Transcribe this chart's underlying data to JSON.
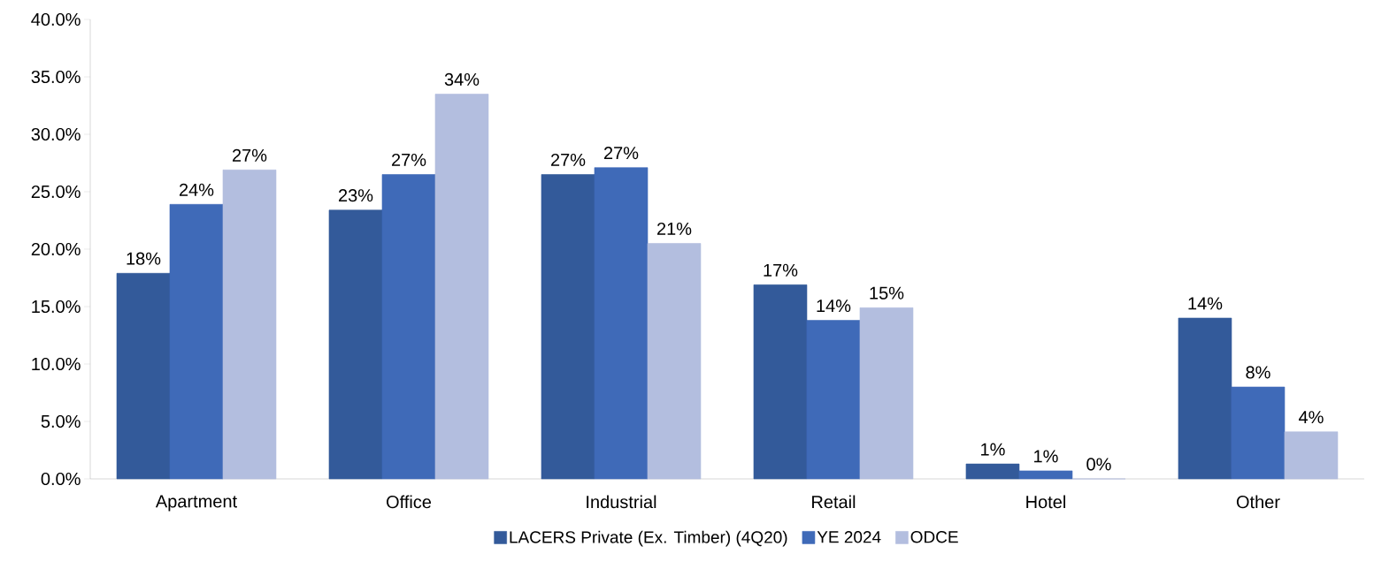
{
  "chart_data": {
    "type": "bar",
    "categories": [
      "Apartment",
      "Office",
      "Industrial",
      "Retail",
      "Hotel",
      "Other"
    ],
    "series": [
      {
        "name": "LACERS Private (Ex. Timber) (4Q20)",
        "color": "#335a9a",
        "values": [
          17.9,
          23.4,
          26.5,
          16.9,
          1.3,
          14.0
        ],
        "value_labels": [
          "18%",
          "23%",
          "27%",
          "17%",
          "1%",
          "14%"
        ]
      },
      {
        "name": "YE 2024",
        "color": "#3f6ab8",
        "values": [
          23.9,
          26.5,
          27.1,
          13.8,
          0.7,
          8.0
        ],
        "value_labels": [
          "24%",
          "27%",
          "27%",
          "14%",
          "1%",
          "8%"
        ]
      },
      {
        "name": "ODCE",
        "color": "#b3bedf",
        "values": [
          26.9,
          33.5,
          20.5,
          14.9,
          0.0,
          4.1
        ],
        "value_labels": [
          "27%",
          "34%",
          "21%",
          "15%",
          "0%",
          "4%"
        ]
      }
    ],
    "ylim": [
      0,
      40
    ],
    "yticks": [
      {
        "value": 0,
        "label": "0.0%"
      },
      {
        "value": 5,
        "label": "5.0%"
      },
      {
        "value": 10,
        "label": "10.0%"
      },
      {
        "value": 15,
        "label": "15.0%"
      },
      {
        "value": 20,
        "label": "20.0%"
      },
      {
        "value": 25,
        "label": "25.0%"
      },
      {
        "value": 30,
        "label": "30.0%"
      },
      {
        "value": 35,
        "label": "35.0%"
      },
      {
        "value": 40,
        "label": "40.0%"
      }
    ],
    "legend": "bottom"
  }
}
